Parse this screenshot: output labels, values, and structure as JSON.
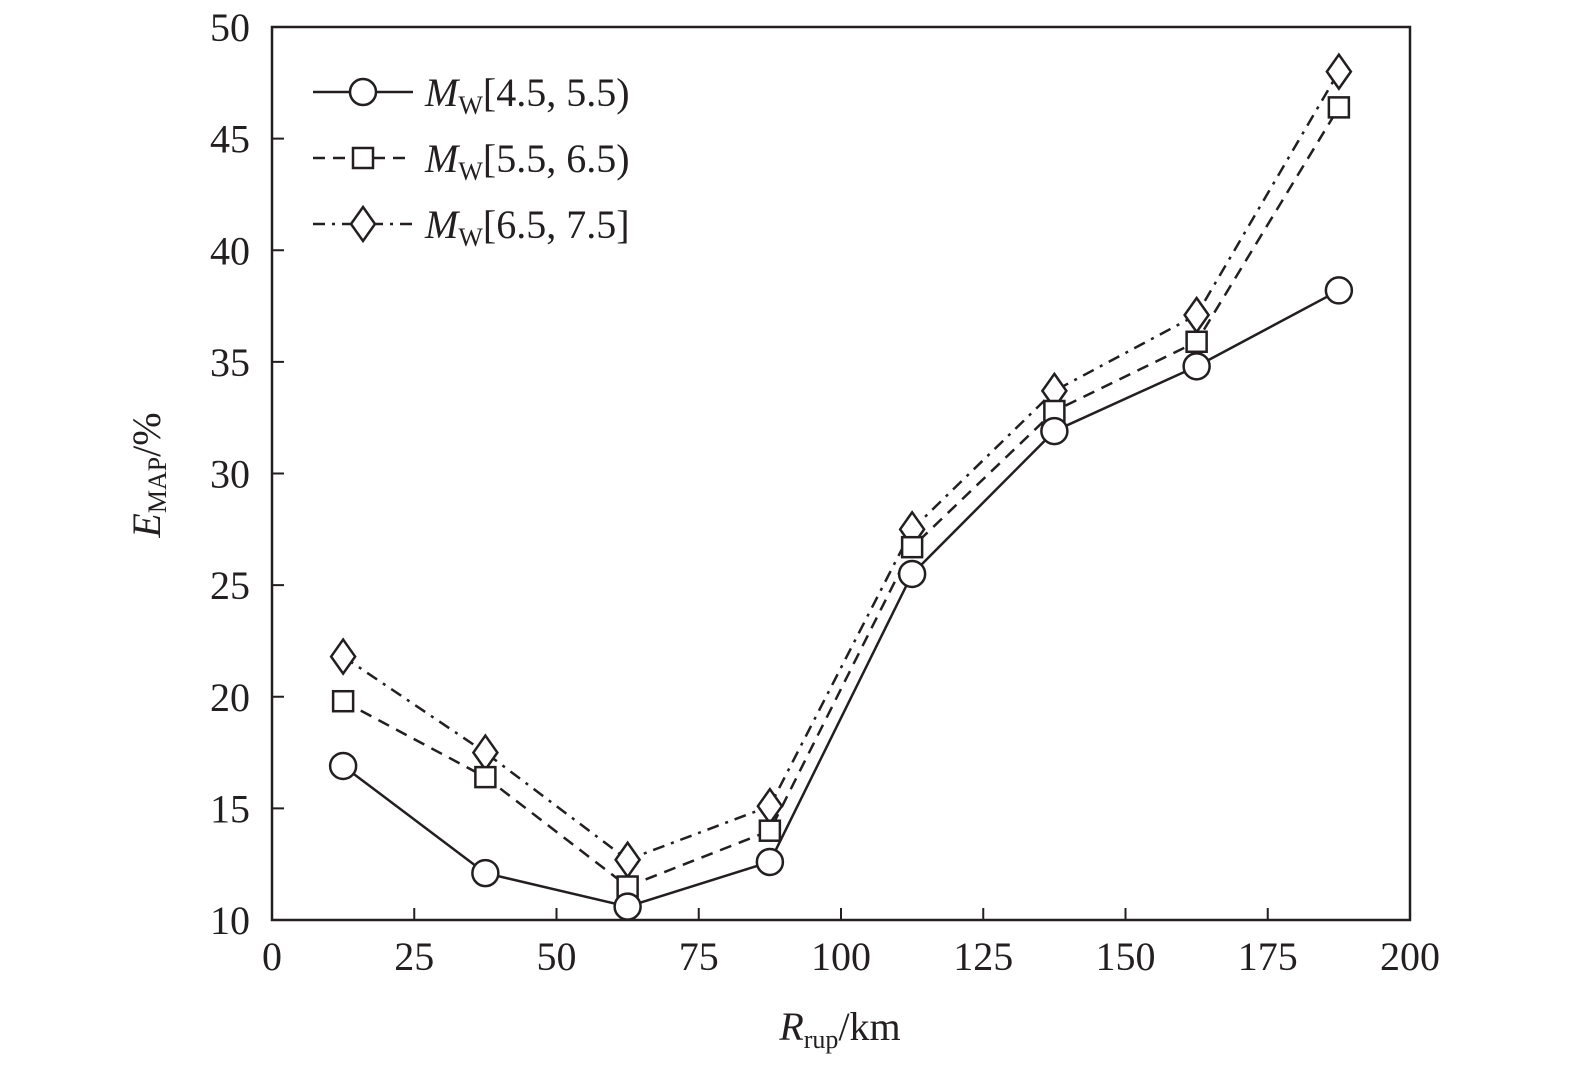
{
  "chart_data": {
    "type": "line",
    "title": "",
    "xlabel": {
      "main": "R",
      "sub": "rup",
      "unit": "/km"
    },
    "ylabel": {
      "main": "E",
      "sub": "MAP",
      "unit": "/%"
    },
    "xlim": [
      0,
      200
    ],
    "ylim": [
      10,
      50
    ],
    "xticks": [
      0,
      25,
      50,
      75,
      100,
      125,
      150,
      175,
      200
    ],
    "yticks": [
      10,
      15,
      20,
      25,
      30,
      35,
      40,
      45,
      50
    ],
    "grid": false,
    "legend_position": "top-left",
    "x": [
      12.5,
      37.5,
      62.5,
      87.5,
      112.5,
      137.5,
      162.5,
      187.5
    ],
    "series": [
      {
        "name_main": "M",
        "name_sub": "W",
        "name_range": "[4.5, 5.5)",
        "marker": "circle",
        "line": "solid",
        "values": [
          16.9,
          12.1,
          10.6,
          12.6,
          25.5,
          31.9,
          34.8,
          38.2
        ]
      },
      {
        "name_main": "M",
        "name_sub": "W",
        "name_range": "[5.5, 6.5)",
        "marker": "square",
        "line": "dashed",
        "values": [
          19.8,
          16.4,
          11.5,
          14.0,
          26.7,
          32.8,
          35.9,
          46.4
        ]
      },
      {
        "name_main": "M",
        "name_sub": "W",
        "name_range": "[6.5, 7.5]",
        "marker": "diamond",
        "line": "dashdot",
        "values": [
          21.8,
          17.5,
          12.7,
          15.1,
          27.5,
          33.7,
          37.1,
          48.0
        ]
      }
    ],
    "color": "#231f20"
  }
}
